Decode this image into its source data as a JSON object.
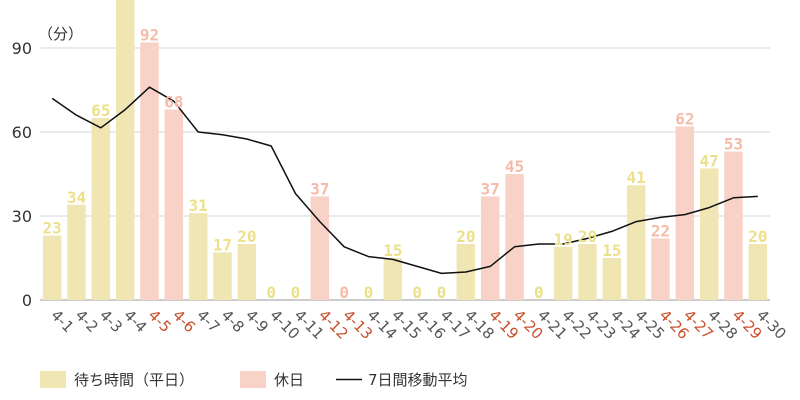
{
  "chart_data": {
    "type": "bar",
    "unit_label": "（分）",
    "categories": [
      "4-1",
      "4-2",
      "4-3",
      "4-4",
      "4-5",
      "4-6",
      "4-7",
      "4-8",
      "4-9",
      "4-10",
      "4-11",
      "4-12",
      "4-13",
      "4-14",
      "4-15",
      "4-16",
      "4-17",
      "4-18",
      "4-19",
      "4-20",
      "4-21",
      "4-22",
      "4-23",
      "4-24",
      "4-25",
      "4-26",
      "4-27",
      "4-28",
      "4-29",
      "4-30"
    ],
    "values": [
      23,
      34,
      65,
      110,
      92,
      68,
      31,
      17,
      20,
      0,
      0,
      37,
      0,
      0,
      15,
      0,
      0,
      20,
      37,
      45,
      0,
      19,
      20,
      15,
      41,
      22,
      62,
      47,
      53,
      20
    ],
    "data_labels": [
      "23",
      "34",
      "65",
      "",
      "92",
      "68",
      "31",
      "17",
      "20",
      "0",
      "0",
      "37",
      "0",
      "0",
      "15",
      "0",
      "0",
      "20",
      "37",
      "45",
      "0",
      "19",
      "20",
      "15",
      "41",
      "22",
      "62",
      "47",
      "53",
      "20"
    ],
    "holiday": [
      false,
      false,
      false,
      false,
      true,
      true,
      false,
      false,
      false,
      false,
      false,
      true,
      true,
      false,
      false,
      false,
      false,
      false,
      true,
      true,
      false,
      false,
      false,
      false,
      false,
      true,
      true,
      false,
      true,
      false
    ],
    "moving_average": [
      72,
      66,
      61.5,
      68,
      76,
      71,
      60,
      59,
      57.5,
      55,
      38,
      28,
      19,
      15.5,
      14.5,
      12,
      9.5,
      10,
      12,
      19,
      20,
      20,
      22,
      24.5,
      28,
      29.5,
      30.5,
      33,
      36.5,
      37
    ],
    "ylim": [
      0,
      100
    ],
    "yticks": [
      0,
      30,
      60,
      90
    ],
    "grid": true,
    "legend": [
      {
        "key": "weekday",
        "label": "待ち時間（平日）"
      },
      {
        "key": "holiday",
        "label": "休日"
      },
      {
        "key": "average",
        "label": "7日間移動平均"
      }
    ],
    "legend_placement": "bottom-left",
    "colors": {
      "weekday_bar": "#f0e6b4",
      "holiday_bar": "#f8d2c6",
      "weekday_label": "#ede08a",
      "holiday_label": "#f5bba8",
      "weekday_tick": "#555555",
      "holiday_tick": "#c8502a",
      "average_line": "#111111",
      "grid": "#d6d6d6"
    }
  }
}
